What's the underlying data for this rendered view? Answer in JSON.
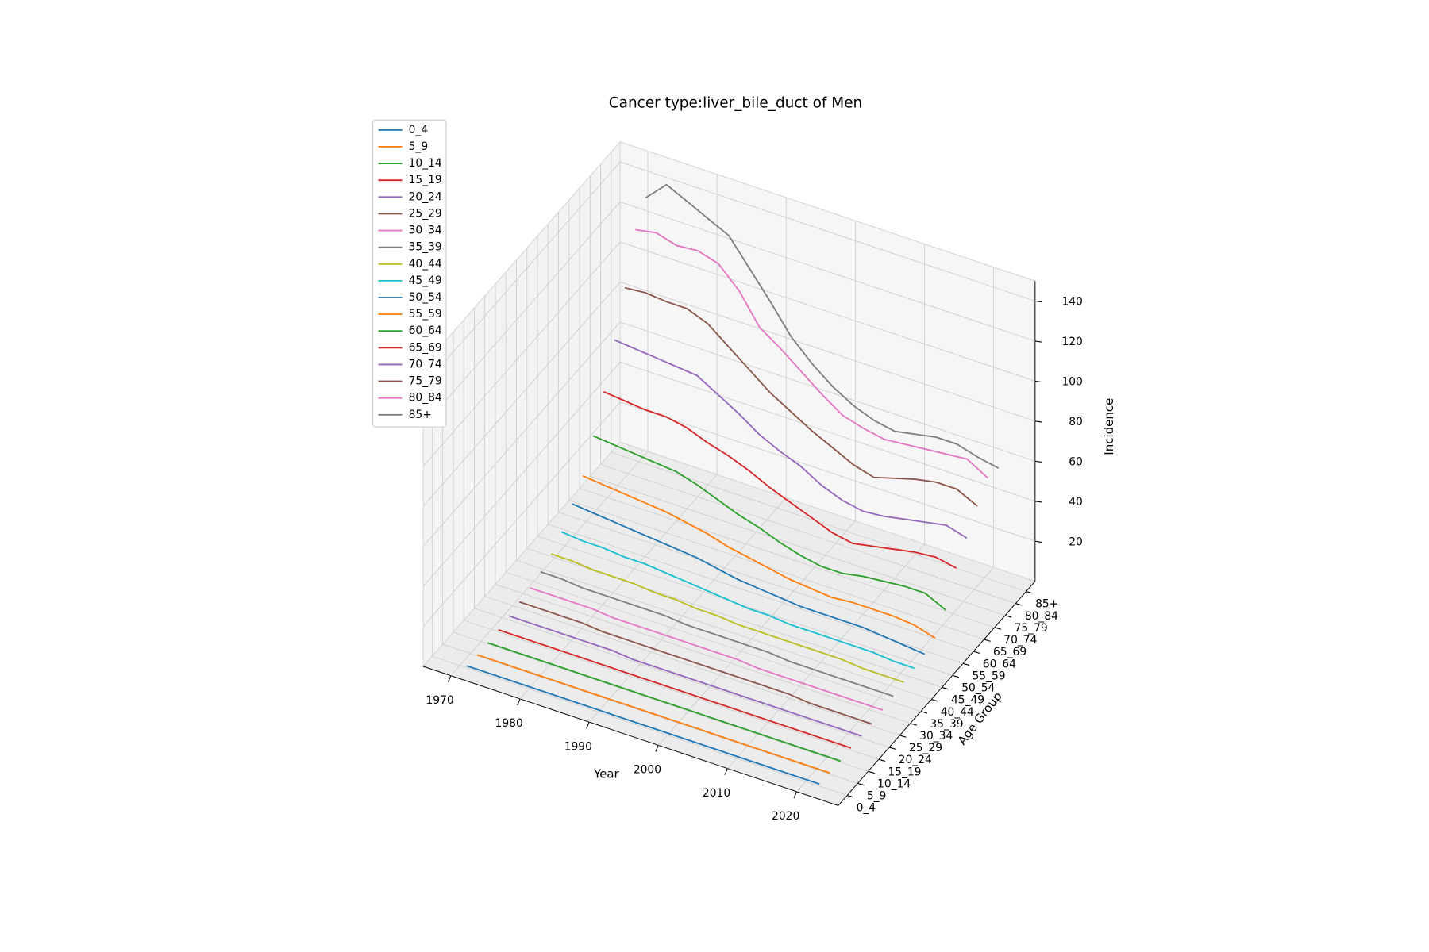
{
  "chart_data": {
    "type": "line3d",
    "title": "Cancer type:liver_bile_duct of Men",
    "xlabel": "Year",
    "ylabel": "Age Group",
    "zlabel": "Incidence",
    "x": [
      1971,
      1974,
      1977,
      1980,
      1983,
      1986,
      1989,
      1992,
      1995,
      1998,
      2001,
      2004,
      2007,
      2010,
      2013,
      2016,
      2019,
      2022
    ],
    "xlim": [
      1966,
      2026
    ],
    "xticks": [
      1970,
      1980,
      1990,
      2000,
      2010,
      2020
    ],
    "ylim": [
      -0.85,
      17.85
    ],
    "zlim": [
      0,
      150
    ],
    "zticks": [
      20,
      40,
      60,
      80,
      100,
      120,
      140
    ],
    "grid": true,
    "legend": "upper left",
    "series": [
      {
        "name": "0_4",
        "color": "#1f77b4",
        "values": [
          1,
          1,
          1,
          1,
          1,
          1,
          1,
          1,
          1,
          1,
          1,
          1,
          1,
          1,
          1,
          1,
          1,
          1
        ]
      },
      {
        "name": "5_9",
        "color": "#ff7f0e",
        "values": [
          0.5,
          0.5,
          0.5,
          0.5,
          0.5,
          0.5,
          0.5,
          0.5,
          0.5,
          0.5,
          0.5,
          0.5,
          0.5,
          0.5,
          0.5,
          0.5,
          0.5,
          0.5
        ]
      },
      {
        "name": "10_14",
        "color": "#2ca02c",
        "values": [
          0.5,
          0.5,
          0.5,
          0.5,
          0.5,
          0.5,
          0.5,
          0.5,
          0.5,
          0.5,
          0.5,
          0.5,
          0.5,
          0.5,
          0.5,
          0.5,
          0.5,
          0.5
        ]
      },
      {
        "name": "15_19",
        "color": "#d62728",
        "values": [
          1,
          1,
          1,
          1,
          1,
          1,
          1,
          1,
          1,
          1,
          1,
          1,
          1,
          1,
          1,
          1,
          1,
          1
        ]
      },
      {
        "name": "20_24",
        "color": "#9467bd",
        "values": [
          2,
          2,
          2,
          2,
          2,
          2,
          1,
          1,
          1,
          1,
          1,
          1,
          1,
          1,
          1,
          1,
          1,
          1
        ]
      },
      {
        "name": "25_29",
        "color": "#8c564b",
        "values": [
          3,
          3,
          3,
          3,
          2,
          2,
          2,
          2,
          2,
          2,
          2,
          2,
          2,
          2,
          1,
          1,
          1,
          1
        ]
      },
      {
        "name": "30_34",
        "color": "#e377c2",
        "values": [
          4,
          4,
          4,
          4,
          3,
          3,
          3,
          3,
          3,
          3,
          3,
          2,
          2,
          2,
          2,
          2,
          2,
          2
        ]
      },
      {
        "name": "35_39",
        "color": "#7f7f7f",
        "values": [
          6,
          6,
          5,
          5,
          5,
          5,
          5,
          4,
          4,
          4,
          4,
          4,
          3,
          3,
          3,
          3,
          3,
          3
        ]
      },
      {
        "name": "40_44",
        "color": "#bcbd22",
        "values": [
          9,
          9,
          8,
          8,
          8,
          7,
          7,
          6,
          6,
          5,
          5,
          5,
          5,
          5,
          5,
          4,
          4,
          4
        ]
      },
      {
        "name": "45_49",
        "color": "#17becf",
        "values": [
          14,
          13,
          13,
          12,
          12,
          11,
          10,
          9,
          8,
          7,
          7,
          6,
          6,
          6,
          6,
          6,
          5,
          5
        ]
      },
      {
        "name": "50_54",
        "color": "#1f77b4",
        "values": [
          22,
          21,
          20,
          19,
          18,
          17,
          16,
          14,
          12,
          11,
          10,
          9,
          9,
          9,
          9,
          8,
          7,
          6
        ]
      },
      {
        "name": "55_59",
        "color": "#ff7f0e",
        "values": [
          30,
          29,
          28,
          27,
          26,
          24,
          22,
          19,
          17,
          15,
          13,
          12,
          11,
          12,
          12,
          12,
          11,
          8
        ]
      },
      {
        "name": "60_64",
        "color": "#2ca02c",
        "values": [
          44,
          43,
          42,
          41,
          40,
          37,
          33,
          29,
          26,
          22,
          19,
          17,
          17,
          19,
          20,
          21,
          21,
          16
        ]
      },
      {
        "name": "65_69",
        "color": "#d62728",
        "values": [
          60,
          59,
          58,
          58,
          56,
          52,
          49,
          45,
          40,
          36,
          32,
          28,
          26,
          28,
          30,
          32,
          33,
          31
        ]
      },
      {
        "name": "70_74",
        "color": "#9467bd",
        "values": [
          80,
          79,
          78,
          77,
          76,
          70,
          64,
          57,
          52,
          48,
          42,
          38,
          36,
          37,
          39,
          41,
          43,
          40
        ]
      },
      {
        "name": "75_79",
        "color": "#8c564b",
        "values": [
          100,
          101,
          100,
          100,
          96,
          88,
          80,
          72,
          66,
          60,
          55,
          50,
          47,
          50,
          53,
          55,
          55,
          50
        ]
      },
      {
        "name": "80_84",
        "color": "#e377c2",
        "values": [
          123,
          125,
          122,
          123,
          120,
          110,
          95,
          88,
          80,
          72,
          65,
          62,
          60,
          61,
          62,
          63,
          64,
          58
        ]
      },
      {
        "name": "85+",
        "color": "#7f7f7f",
        "values": [
          133,
          143,
          138,
          133,
          128,
          115,
          102,
          88,
          78,
          70,
          64,
          60,
          58,
          60,
          62,
          62,
          59,
          57
        ]
      }
    ]
  }
}
